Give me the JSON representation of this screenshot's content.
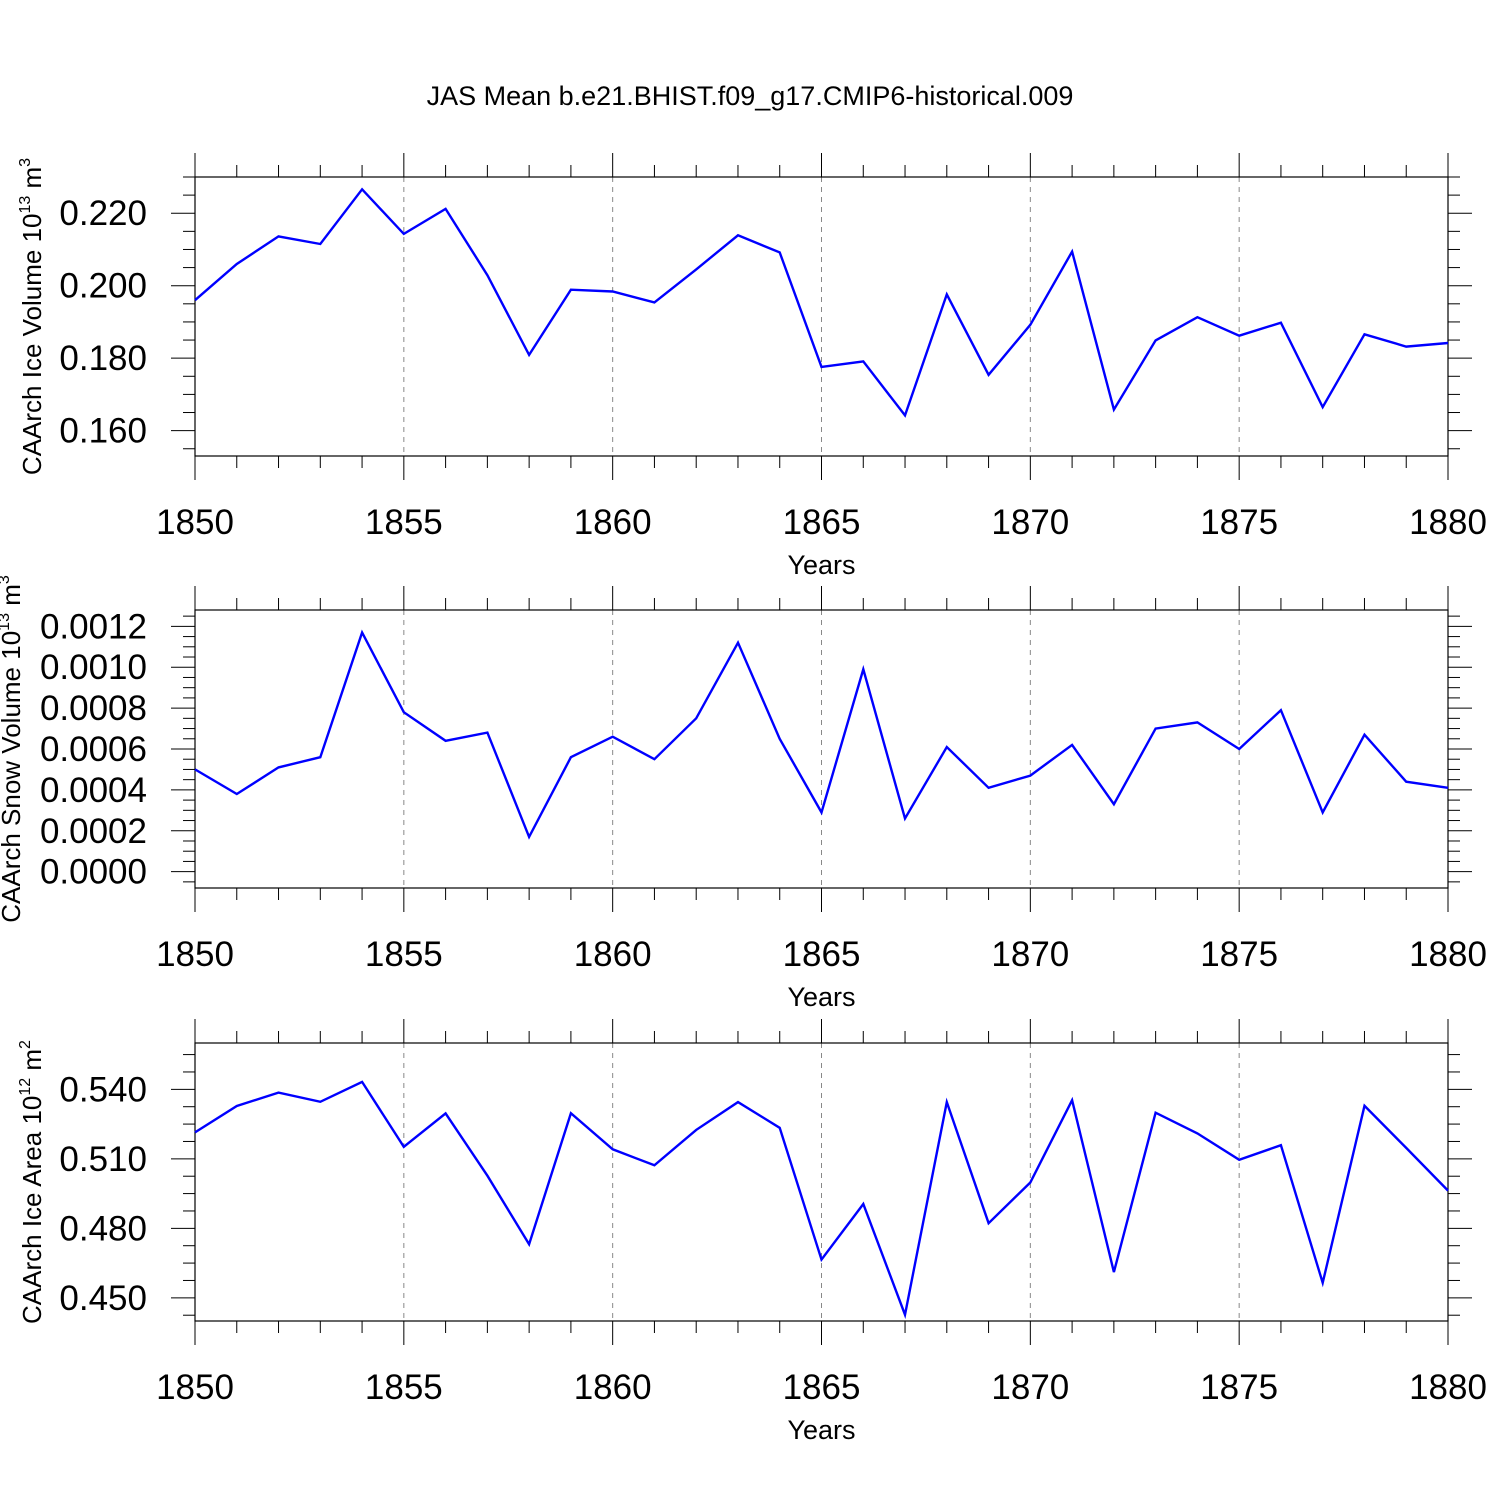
{
  "title": "JAS Mean b.e21.BHIST.f09_g17.CMIP6-historical.009",
  "line_color": "#0000ff",
  "chart_data": [
    {
      "type": "line",
      "ylabel": "CAArch Ice Volume 10",
      "ylabel_exp": "13",
      "ylabel_unit": "m",
      "ylabel_unit_exp": "3",
      "xlabel": "Years",
      "xlim": [
        1850,
        1880
      ],
      "ylim": [
        0.153,
        0.23
      ],
      "xticks": [
        "1850",
        "1855",
        "1860",
        "1865",
        "1870",
        "1875",
        "1880"
      ],
      "yticks": [
        {
          "value": 0.16,
          "label": "0.160"
        },
        {
          "value": 0.18,
          "label": "0.180"
        },
        {
          "value": 0.2,
          "label": "0.200"
        },
        {
          "value": 0.22,
          "label": "0.220"
        }
      ],
      "grid": "vertical dashed at major x ticks",
      "x": [
        1850,
        1851,
        1852,
        1853,
        1854,
        1855,
        1856,
        1857,
        1858,
        1859,
        1860,
        1861,
        1862,
        1863,
        1864,
        1865,
        1866,
        1867,
        1868,
        1869,
        1870,
        1871,
        1872,
        1873,
        1874,
        1875,
        1876,
        1877,
        1878,
        1879,
        1880
      ],
      "series": [
        {
          "values": [
            0.196,
            0.206,
            0.2136,
            0.2115,
            0.2266,
            0.2143,
            0.2212,
            0.2029,
            0.1809,
            0.1989,
            0.1984,
            0.1954,
            0.2045,
            0.2139,
            0.2092,
            0.1776,
            0.1791,
            0.1642,
            0.1976,
            0.1754,
            0.1892,
            0.2094,
            0.1658,
            0.1849,
            0.1913,
            0.1862,
            0.1898,
            0.1665,
            0.1866,
            0.1832,
            0.1842
          ]
        }
      ]
    },
    {
      "type": "line",
      "ylabel": "CAArch Snow Volume 10",
      "ylabel_exp": "13",
      "ylabel_unit": "m",
      "ylabel_unit_exp": "3",
      "xlabel": "Years",
      "xlim": [
        1850,
        1880
      ],
      "ylim": [
        -8e-05,
        0.00128
      ],
      "xticks": [
        "1850",
        "1855",
        "1860",
        "1865",
        "1870",
        "1875",
        "1880"
      ],
      "yticks": [
        {
          "value": 0,
          "label": "0.0000"
        },
        {
          "value": 0.0002,
          "label": "0.0002"
        },
        {
          "value": 0.0004,
          "label": "0.0004"
        },
        {
          "value": 0.0006,
          "label": "0.0006"
        },
        {
          "value": 0.0008,
          "label": "0.0008"
        },
        {
          "value": 0.001,
          "label": "0.0010"
        },
        {
          "value": 0.0012,
          "label": "0.0012"
        }
      ],
      "grid": "vertical dashed at major x ticks",
      "x": [
        1850,
        1851,
        1852,
        1853,
        1854,
        1855,
        1856,
        1857,
        1858,
        1859,
        1860,
        1861,
        1862,
        1863,
        1864,
        1865,
        1866,
        1867,
        1868,
        1869,
        1870,
        1871,
        1872,
        1873,
        1874,
        1875,
        1876,
        1877,
        1878,
        1879,
        1880
      ],
      "series": [
        {
          "values": [
            0.0005,
            0.00038,
            0.00051,
            0.00056,
            0.00117,
            0.00078,
            0.00064,
            0.00068,
            0.00017,
            0.00056,
            0.00066,
            0.00055,
            0.00075,
            0.00112,
            0.00065,
            0.00029,
            0.00099,
            0.00026,
            0.00061,
            0.00041,
            0.00047,
            0.00062,
            0.00033,
            0.0007,
            0.00073,
            0.0006,
            0.00079,
            0.00029,
            0.00067,
            0.00044,
            0.00041
          ]
        }
      ]
    },
    {
      "type": "line",
      "ylabel": "CAArch Ice Area 10",
      "ylabel_exp": "12",
      "ylabel_unit": "m",
      "ylabel_unit_exp": "2",
      "xlabel": "Years",
      "xlim": [
        1850,
        1880
      ],
      "ylim": [
        0.44,
        0.56
      ],
      "xticks": [
        "1850",
        "1855",
        "1860",
        "1865",
        "1870",
        "1875",
        "1880"
      ],
      "yticks": [
        {
          "value": 0.45,
          "label": "0.450"
        },
        {
          "value": 0.48,
          "label": "0.480"
        },
        {
          "value": 0.51,
          "label": "0.510"
        },
        {
          "value": 0.54,
          "label": "0.540"
        }
      ],
      "grid": "vertical dashed at major x ticks",
      "x": [
        1850,
        1851,
        1852,
        1853,
        1854,
        1855,
        1856,
        1857,
        1858,
        1859,
        1860,
        1861,
        1862,
        1863,
        1864,
        1865,
        1866,
        1867,
        1868,
        1869,
        1870,
        1871,
        1872,
        1873,
        1874,
        1875,
        1876,
        1877,
        1878,
        1879,
        1880
      ],
      "series": [
        {
          "values": [
            0.5214,
            0.5328,
            0.5386,
            0.5346,
            0.5432,
            0.5152,
            0.5296,
            0.5027,
            0.4731,
            0.5297,
            0.5141,
            0.5072,
            0.5225,
            0.5345,
            0.5234,
            0.4665,
            0.4905,
            0.4427,
            0.5345,
            0.4822,
            0.4998,
            0.5353,
            0.4611,
            0.5299,
            0.521,
            0.5096,
            0.5159,
            0.4565,
            0.5329,
            0.5147,
            0.4963
          ]
        }
      ]
    }
  ]
}
